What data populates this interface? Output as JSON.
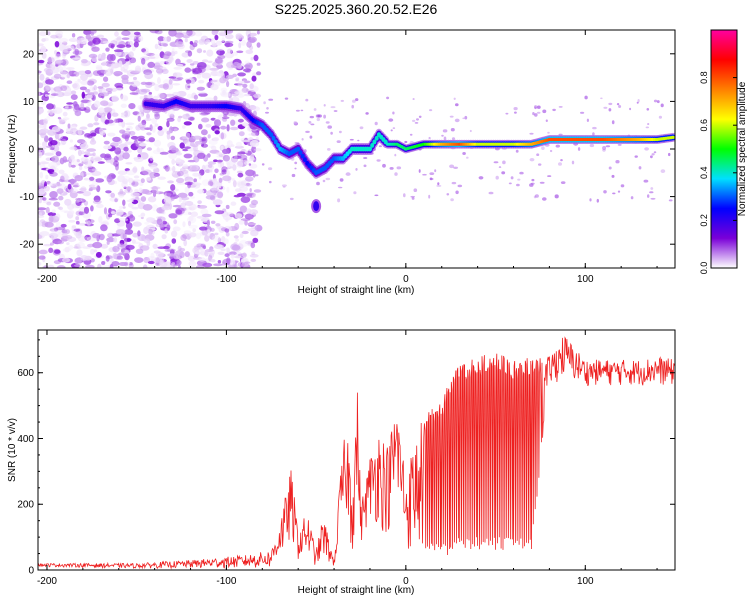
{
  "title": "S225.2025.360.20.52.E26",
  "chart_data": [
    {
      "type": "heatmap",
      "xlabel": "Height of straight line (km)",
      "ylabel": "Frequency (Hz)",
      "xlim": [
        -205,
        150
      ],
      "ylim": [
        -25,
        25
      ],
      "xticks": [
        -200,
        -100,
        0,
        100
      ],
      "yticks": [
        -20,
        -10,
        0,
        10,
        20
      ],
      "noise_region": {
        "x_from": -205,
        "x_to": -82,
        "freq_range": [
          -25,
          25
        ],
        "amplitude": "low"
      },
      "ridge": {
        "x": [
          -145,
          -135,
          -128,
          -120,
          -110,
          -100,
          -92,
          -85,
          -80,
          -75,
          -70,
          -65,
          -60,
          -55,
          -50,
          -45,
          -40,
          -35,
          -30,
          -25,
          -20,
          -15,
          -10,
          -5,
          0,
          10,
          20,
          30,
          40,
          50,
          60,
          70,
          80,
          90,
          100,
          110,
          120,
          130,
          140,
          150
        ],
        "y": [
          9.5,
          9,
          10,
          9,
          9,
          9,
          8.5,
          6,
          5,
          3,
          0,
          -1,
          0,
          -3,
          -5,
          -4,
          -2,
          -2,
          0,
          0,
          0,
          3,
          1,
          1,
          0,
          1,
          1,
          1,
          1,
          1,
          1,
          1,
          2,
          2,
          2,
          2,
          2,
          2,
          2,
          2.5
        ],
        "amplitude": [
          0.2,
          0.2,
          0.25,
          0.2,
          0.2,
          0.25,
          0.2,
          0.25,
          0.3,
          0.3,
          0.35,
          0.3,
          0.3,
          0.25,
          0.3,
          0.3,
          0.3,
          0.35,
          0.4,
          0.4,
          0.4,
          0.4,
          0.4,
          0.45,
          0.45,
          0.5,
          0.7,
          0.8,
          0.6,
          0.6,
          0.6,
          0.7,
          0.8,
          0.8,
          0.8,
          0.8,
          0.75,
          0.7,
          0.6,
          0.6
        ]
      },
      "blob": {
        "x": -50,
        "y": -12,
        "amplitude": 0.2
      },
      "colorbar": {
        "label": "Normalized spectral amplitude",
        "range": [
          0,
          1
        ],
        "ticks": [
          0.0,
          0.2,
          0.4,
          0.6,
          0.8
        ],
        "tick_labels": [
          "0.0",
          "0.2",
          "0.4",
          "0.6",
          "0.8"
        ],
        "colors": [
          "#ffffff",
          "#7a00d8",
          "#0000ff",
          "#00e0ff",
          "#00ff00",
          "#ffff00",
          "#ff8000",
          "#ff0000",
          "#ff00a0"
        ]
      }
    },
    {
      "type": "line",
      "xlabel": "Height of straight line (km)",
      "ylabel": "SNR (10 * v/v)",
      "xlim": [
        -205,
        150
      ],
      "ylim": [
        0,
        730
      ],
      "xticks": [
        -200,
        -100,
        0,
        100
      ],
      "yticks": [
        0,
        200,
        400,
        600
      ],
      "color": "#ee2020",
      "series": [
        {
          "name": "SNR",
          "x": [
            -205,
            -150,
            -120,
            -90,
            -75,
            -68,
            -64,
            -60,
            -55,
            -50,
            -46,
            -40,
            -36,
            -33,
            -30,
            -27,
            -25,
            -20,
            -15,
            -10,
            -5,
            0,
            5,
            10,
            15,
            20,
            25,
            30,
            40,
            50,
            60,
            70,
            80,
            88,
            100,
            110,
            120,
            130,
            140,
            150
          ],
          "y": [
            20,
            20,
            30,
            45,
            60,
            200,
            310,
            120,
            180,
            60,
            170,
            30,
            330,
            450,
            320,
            550,
            200,
            350,
            440,
            380,
            520,
            300,
            400,
            480,
            500,
            520,
            600,
            620,
            650,
            660,
            640,
            650,
            650,
            720,
            640,
            640,
            640,
            640,
            650,
            640
          ],
          "oscillation_floor": [
            10,
            5,
            5,
            5,
            5,
            50,
            80,
            30,
            40,
            10,
            30,
            10,
            100,
            150,
            30,
            200,
            80,
            150,
            130,
            100,
            200,
            50,
            50,
            40,
            50,
            50,
            40,
            60,
            60,
            60,
            60,
            60,
            560,
            580,
            560,
            560,
            560,
            560,
            560,
            560
          ]
        }
      ]
    }
  ]
}
